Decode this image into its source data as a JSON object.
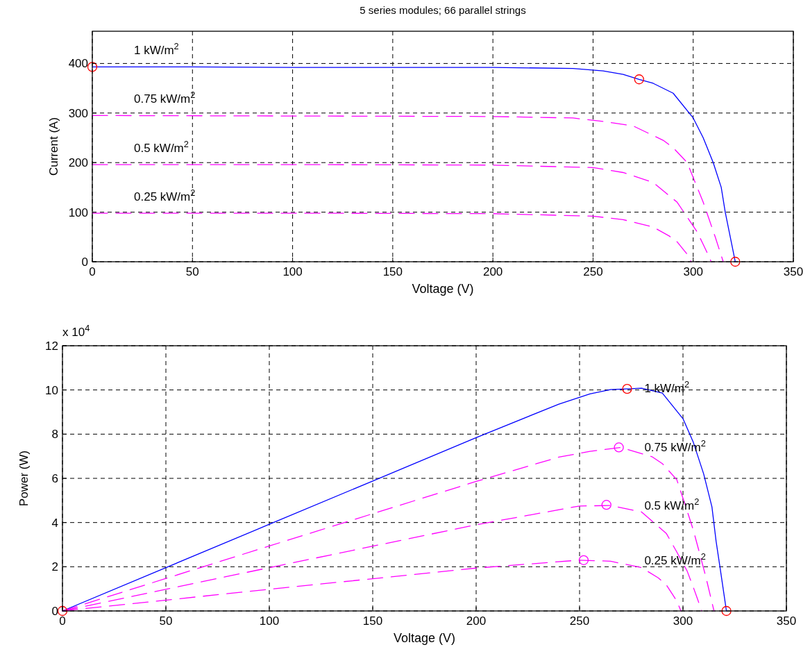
{
  "chart_data": [
    {
      "type": "line",
      "title": "5 series modules; 66 parallel strings",
      "xlabel": "Voltage (V)",
      "ylabel": "Current (A)",
      "xlim": [
        0,
        350
      ],
      "ylim": [
        0,
        465
      ],
      "xticks": [
        0,
        50,
        100,
        150,
        200,
        250,
        300,
        350
      ],
      "yticks": [
        0,
        100,
        200,
        300,
        400
      ],
      "grid": true,
      "series": [
        {
          "name": "1 kW/m$^{2}$",
          "color": "#0000ff",
          "line_style": "solid",
          "x": [
            0,
            50,
            100,
            150,
            200,
            240,
            255,
            265,
            273,
            280,
            290,
            300,
            305,
            310,
            314,
            316,
            318,
            320,
            321
          ],
          "values": [
            393,
            393,
            392,
            392,
            392,
            390,
            385,
            378,
            368,
            360,
            340,
            290,
            250,
            200,
            150,
            100,
            60,
            20,
            0
          ]
        },
        {
          "name": "0.75 kW/m$^{2}$",
          "color": "#ff00ff",
          "line_style": "dashed",
          "x": [
            0,
            100,
            200,
            240,
            255,
            270,
            285,
            290,
            297,
            301,
            305,
            308,
            311,
            313,
            315
          ],
          "values": [
            295,
            294,
            293,
            290,
            283,
            274,
            245,
            230,
            200,
            160,
            120,
            85,
            50,
            25,
            0
          ]
        },
        {
          "name": "0.5 kW/m$^{2}$",
          "color": "#ff00ff",
          "line_style": "dashed",
          "x": [
            0,
            100,
            200,
            250,
            265,
            280,
            292,
            297,
            302,
            305,
            307,
            309
          ],
          "values": [
            196,
            196,
            195,
            190,
            180,
            160,
            120,
            90,
            60,
            35,
            18,
            0
          ]
        },
        {
          "name": "0.25 kW/m$^{2}$",
          "color": "#ff00ff",
          "line_style": "dashed",
          "x": [
            0,
            100,
            200,
            250,
            265,
            280,
            288,
            292,
            295,
            297,
            299
          ],
          "values": [
            98,
            98,
            97,
            92,
            85,
            70,
            52,
            40,
            25,
            15,
            0
          ]
        },
        {
          "type": "scatter",
          "color": "#ff0000",
          "marker": "circle",
          "x": [
            0,
            273,
            321
          ],
          "values": [
            393,
            368,
            0
          ]
        }
      ],
      "legend": false
    },
    {
      "type": "line",
      "xlabel": "Voltage (V)",
      "ylabel": "Power (W)",
      "xlim": [
        0,
        350
      ],
      "ylim": [
        0,
        12
      ],
      "xticks": [
        0,
        50,
        100,
        150,
        200,
        250,
        300,
        350
      ],
      "yticks": [
        0,
        2,
        4,
        6,
        8,
        10,
        12
      ],
      "grid": true,
      "series": [
        {
          "name": "1 kW/m$^{2}$",
          "color": "#0000ff",
          "line_style": "solid",
          "x": [
            0,
            50,
            100,
            150,
            200,
            240,
            255,
            265,
            273,
            280,
            290,
            300,
            305,
            310,
            314,
            316,
            318,
            320,
            321
          ],
          "values": [
            0,
            1.96,
            3.92,
            5.88,
            7.84,
            9.36,
            9.82,
            10.02,
            10.05,
            10.08,
            9.86,
            8.7,
            7.63,
            6.2,
            4.71,
            3.16,
            1.91,
            0.64,
            0
          ]
        },
        {
          "name": "0.75 kW/m$^{2}$",
          "color": "#ff00ff",
          "line_style": "dashed",
          "x": [
            0,
            100,
            200,
            240,
            255,
            270,
            285,
            290,
            297,
            301,
            305,
            308,
            311,
            313,
            315
          ],
          "values": [
            0,
            2.94,
            5.86,
            6.96,
            7.22,
            7.4,
            6.98,
            6.67,
            5.94,
            4.82,
            3.66,
            2.62,
            1.56,
            0.78,
            0
          ]
        },
        {
          "name": "0.5 kW/m$^{2}$",
          "color": "#ff00ff",
          "line_style": "dashed",
          "x": [
            0,
            100,
            200,
            250,
            265,
            280,
            292,
            297,
            302,
            305,
            307,
            309
          ],
          "values": [
            0,
            1.96,
            3.9,
            4.75,
            4.77,
            4.48,
            3.5,
            2.67,
            1.81,
            1.07,
            0.55,
            0
          ]
        },
        {
          "name": "0.25 kW/m$^{2}$",
          "color": "#ff00ff",
          "line_style": "dashed",
          "x": [
            0,
            100,
            200,
            250,
            265,
            280,
            288,
            292,
            295,
            297,
            299
          ],
          "values": [
            0,
            0.98,
            1.94,
            2.3,
            2.25,
            1.96,
            1.5,
            1.17,
            0.74,
            0.45,
            0
          ]
        },
        {
          "type": "scatter",
          "color": "#ff0000",
          "marker": "circle",
          "x": [
            0,
            273,
            321
          ],
          "values": [
            0,
            10.05,
            0
          ]
        },
        {
          "type": "scatter",
          "color": "#ff00ff",
          "marker": "circle",
          "x": [
            269,
            263,
            252
          ],
          "values": [
            7.4,
            4.8,
            2.3
          ]
        }
      ],
      "annotations": [
        "x 10$^{4}$"
      ],
      "legend": false
    }
  ]
}
